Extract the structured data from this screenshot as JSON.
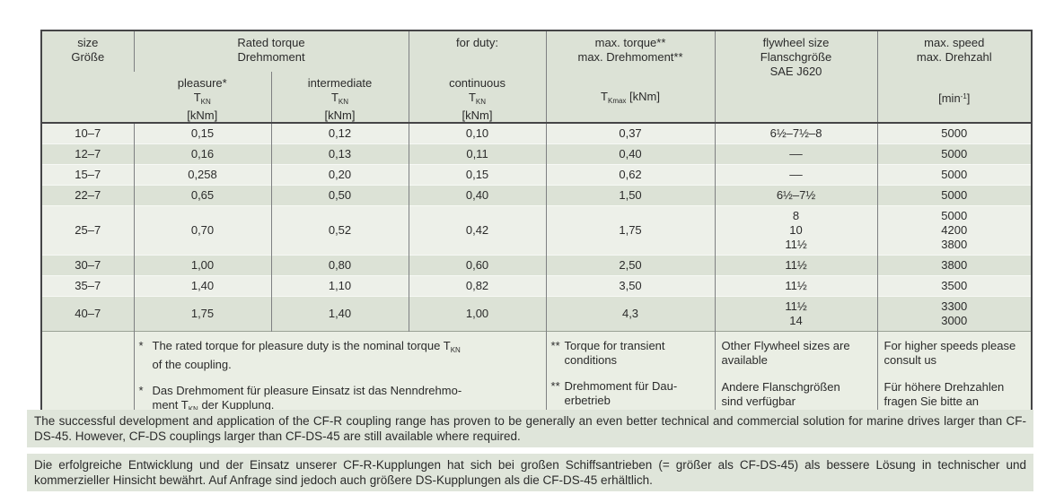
{
  "colors": {
    "stripe_light": "#edf0e9",
    "stripe_dark": "#dce2d6",
    "footnote_bg": "#eaeee4",
    "paragraph_bg": "#dfe5da",
    "frame": "#454547"
  },
  "table": {
    "header": {
      "size_l1": "size",
      "size_l2": "Größe",
      "rated_l1": "Rated torque",
      "rated_l2": "Drehmoment",
      "for_duty": "for duty:",
      "pleasure": "pleasure*",
      "intermediate": "intermediate",
      "continuous": "continuous",
      "t": "T",
      "t_sub": "KN",
      "knm": "[kNm]",
      "maxt_l1": "max. torque**",
      "maxt_l2": "max. Drehmoment**",
      "tkmax_sub": "Kmax",
      "tkmax_unit": " [kNm]",
      "fly_l1": "flywheel size",
      "fly_l2": "Flanschgröße",
      "fly_l3": "SAE J620",
      "speed_l1": "max. speed",
      "speed_l2": "max. Drehzahl",
      "min_pre": "[min",
      "min_sup": "-1",
      "min_post": "]"
    },
    "rows": [
      {
        "size": "10–7",
        "pleasure": "0,15",
        "intermediate": "0,12",
        "continuous": "0,10",
        "max_torque": "0,37",
        "flywheel": "6½–7½–8",
        "speed": "5000"
      },
      {
        "size": "12–7",
        "pleasure": "0,16",
        "intermediate": "0,13",
        "continuous": "0,11",
        "max_torque": "0,40",
        "flywheel": "––",
        "speed": "5000"
      },
      {
        "size": "15–7",
        "pleasure": "0,258",
        "intermediate": "0,20",
        "continuous": "0,15",
        "max_torque": "0,62",
        "flywheel": "––",
        "speed": "5000"
      },
      {
        "size": "22–7",
        "pleasure": "0,65",
        "intermediate": "0,50",
        "continuous": "0,40",
        "max_torque": "1,50",
        "flywheel": "6½–7½",
        "speed": "5000"
      },
      {
        "size": "25–7",
        "pleasure": "0,70",
        "intermediate": "0,52",
        "continuous": "0,42",
        "max_torque": "1,75",
        "flywheel": "8\n10\n11½",
        "speed": "5000\n4200\n3800"
      },
      {
        "size": "30–7",
        "pleasure": "1,00",
        "intermediate": "0,80",
        "continuous": "0,60",
        "max_torque": "2,50",
        "flywheel": "11½",
        "speed": "3800"
      },
      {
        "size": "35–7",
        "pleasure": "1,40",
        "intermediate": "1,10",
        "continuous": "0,82",
        "max_torque": "3,50",
        "flywheel": "11½",
        "speed": "3500"
      },
      {
        "size": "40–7",
        "pleasure": "1,75",
        "intermediate": "1,40",
        "continuous": "1,00",
        "max_torque": "4,3",
        "flywheel": "11½\n14",
        "speed": "3300\n3000"
      }
    ],
    "footnotes": {
      "rated": {
        "marker": "*",
        "en_pre": "The rated torque for pleasure duty is the nominal torque T",
        "en_sub": "KN",
        "en_post": "\nof the coupling.",
        "de_pre": "Das Drehmoment für pleasure Einsatz ist das Nenndrehmo-\nment T",
        "de_sub": "KN",
        "de_post": " der Kupplung."
      },
      "max_torque": {
        "marker": "**",
        "en": "Torque for transient\nconditions",
        "de": "Drehmoment für Dau-\nerbetrieb"
      },
      "flywheel": {
        "en": "Other Flywheel sizes are\navailable",
        "de": "Andere Flanschgrößen\nsind verfügbar"
      },
      "speed": {
        "en": "For higher speeds please\nconsult us",
        "de": "Für höhere Drehzahlen\nfragen Sie bitte an"
      }
    }
  },
  "paragraphs": {
    "en": "The successful development and application of the CF-R coupling range has proven to be generally an even better technical and commercial solution for marine drives larger than CF-DS-45. However, CF-DS couplings larger than CF-DS-45 are still available where required.",
    "de": "Die erfolgreiche Entwicklung und der Einsatz unserer CF-R-Kupplungen hat sich bei großen Schiffsantrieben (= größer als CF-DS-45) als bessere Lösung in technischer und kommerzieller Hinsicht bewährt. Auf Anfrage sind jedoch auch größere DS-Kupplungen als die CF-DS-45 erhältlich."
  }
}
